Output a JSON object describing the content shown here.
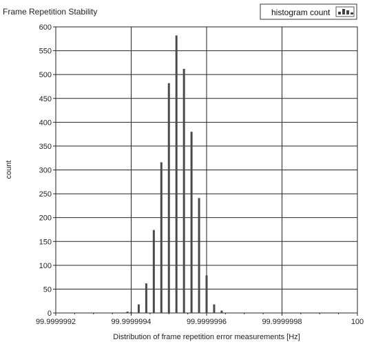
{
  "chart_data": {
    "type": "bar",
    "title": "Frame Repetition Stability",
    "xlabel": "Distribution of frame repetition error measurements [Hz]",
    "ylabel": "count",
    "xlim": [
      99.9999992,
      100
    ],
    "ylim": [
      0,
      600
    ],
    "x_ticks": [
      99.9999992,
      99.9999994,
      99.9999996,
      99.9999998,
      100
    ],
    "x_tick_labels": [
      "99.9999992",
      "99.9999994",
      "99.9999996",
      "99.9999998",
      "100"
    ],
    "y_ticks": [
      0,
      50,
      100,
      150,
      200,
      250,
      300,
      350,
      400,
      450,
      500,
      550,
      600
    ],
    "grid": true,
    "legend_position": "top-right",
    "series": [
      {
        "name": "histogram count",
        "x": [
          99.99999939,
          99.9999994,
          99.99999942,
          99.99999944,
          99.99999946,
          99.99999948,
          99.9999995,
          99.99999952,
          99.99999954,
          99.99999956,
          99.99999958,
          99.9999996,
          99.99999962,
          99.99999964,
          99.99999966,
          99.99999968,
          99.9999997,
          99.99999972,
          99.99999974,
          99.99999976
        ],
        "values": [
          3,
          2,
          18,
          62,
          174,
          316,
          482,
          582,
          512,
          380,
          241,
          79,
          18,
          5,
          0,
          0,
          0,
          0,
          0,
          0
        ]
      }
    ],
    "colors": {
      "bar": "#4a4a4a",
      "grid": "#222222",
      "legend_icon": "#333333"
    }
  }
}
